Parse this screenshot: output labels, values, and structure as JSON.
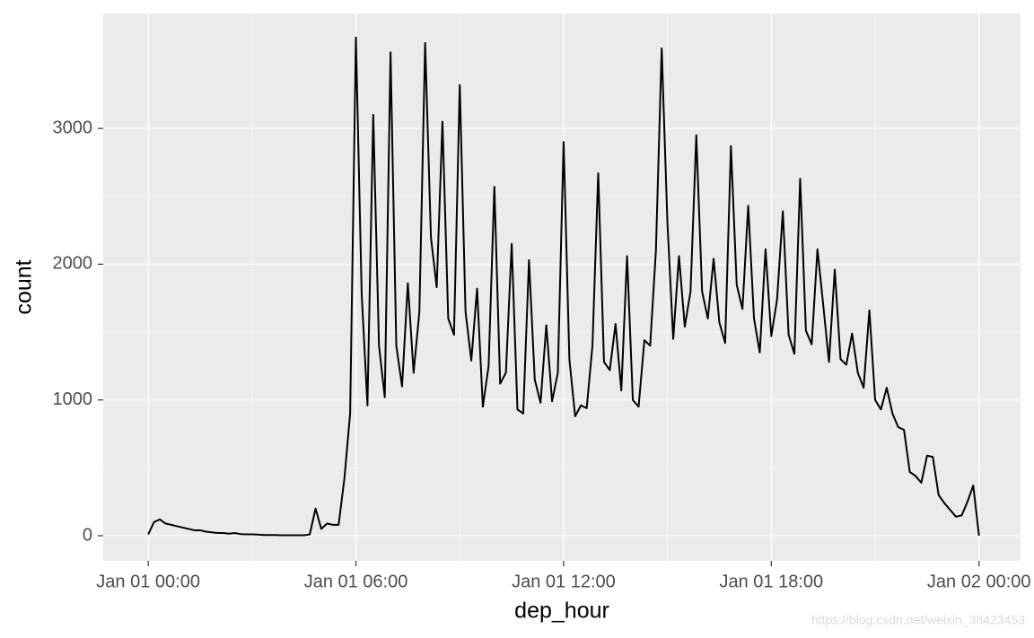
{
  "chart_data": {
    "type": "line",
    "x_label": "dep_hour",
    "y_label": "count",
    "watermark": "https://blog.csdn.net/weixin_38423453",
    "color": "#000000",
    "grid": true,
    "xlim": [
      "12-31T22:42",
      "01-02T01:12"
    ],
    "xticks": [
      {
        "value": "01-01T00:00",
        "label": "Jan 01 00:00"
      },
      {
        "value": "01-01T06:00",
        "label": "Jan 01 06:00"
      },
      {
        "value": "01-01T12:00",
        "label": "Jan 01 12:00"
      },
      {
        "value": "01-01T18:00",
        "label": "Jan 01 18:00"
      },
      {
        "value": "01-02T00:00",
        "label": "Jan 02 00:00"
      }
    ],
    "ylim": [
      -185,
      3847
    ],
    "yticks": [
      0,
      1000,
      2000,
      3000
    ],
    "x": [
      "01-01T00:00",
      "01-01T00:10",
      "01-01T00:20",
      "01-01T00:30",
      "01-01T00:40",
      "01-01T00:50",
      "01-01T01:00",
      "01-01T01:10",
      "01-01T01:20",
      "01-01T01:30",
      "01-01T01:40",
      "01-01T01:50",
      "01-01T02:00",
      "01-01T02:10",
      "01-01T02:20",
      "01-01T02:30",
      "01-01T02:40",
      "01-01T02:50",
      "01-01T03:00",
      "01-01T03:10",
      "01-01T03:20",
      "01-01T03:30",
      "01-01T03:40",
      "01-01T03:50",
      "01-01T04:00",
      "01-01T04:10",
      "01-01T04:20",
      "01-01T04:30",
      "01-01T04:40",
      "01-01T04:50",
      "01-01T05:00",
      "01-01T05:10",
      "01-01T05:20",
      "01-01T05:30",
      "01-01T05:40",
      "01-01T05:50",
      "01-01T06:00",
      "01-01T06:10",
      "01-01T06:20",
      "01-01T06:30",
      "01-01T06:40",
      "01-01T06:50",
      "01-01T07:00",
      "01-01T07:10",
      "01-01T07:20",
      "01-01T07:30",
      "01-01T07:40",
      "01-01T07:50",
      "01-01T08:00",
      "01-01T08:10",
      "01-01T08:20",
      "01-01T08:30",
      "01-01T08:40",
      "01-01T08:50",
      "01-01T09:00",
      "01-01T09:10",
      "01-01T09:20",
      "01-01T09:30",
      "01-01T09:40",
      "01-01T09:50",
      "01-01T10:00",
      "01-01T10:10",
      "01-01T10:20",
      "01-01T10:30",
      "01-01T10:40",
      "01-01T10:50",
      "01-01T11:00",
      "01-01T11:10",
      "01-01T11:20",
      "01-01T11:30",
      "01-01T11:40",
      "01-01T11:50",
      "01-01T12:00",
      "01-01T12:10",
      "01-01T12:20",
      "01-01T12:30",
      "01-01T12:40",
      "01-01T12:50",
      "01-01T13:00",
      "01-01T13:10",
      "01-01T13:20",
      "01-01T13:30",
      "01-01T13:40",
      "01-01T13:50",
      "01-01T14:00",
      "01-01T14:10",
      "01-01T14:20",
      "01-01T14:30",
      "01-01T14:40",
      "01-01T14:50",
      "01-01T15:00",
      "01-01T15:10",
      "01-01T15:20",
      "01-01T15:30",
      "01-01T15:40",
      "01-01T15:50",
      "01-01T16:00",
      "01-01T16:10",
      "01-01T16:20",
      "01-01T16:30",
      "01-01T16:40",
      "01-01T16:50",
      "01-01T17:00",
      "01-01T17:10",
      "01-01T17:20",
      "01-01T17:30",
      "01-01T17:40",
      "01-01T17:50",
      "01-01T18:00",
      "01-01T18:10",
      "01-01T18:20",
      "01-01T18:30",
      "01-01T18:40",
      "01-01T18:50",
      "01-01T19:00",
      "01-01T19:10",
      "01-01T19:20",
      "01-01T19:30",
      "01-01T19:40",
      "01-01T19:50",
      "01-01T20:00",
      "01-01T20:10",
      "01-01T20:20",
      "01-01T20:30",
      "01-01T20:40",
      "01-01T20:50",
      "01-01T21:00",
      "01-01T21:10",
      "01-01T21:20",
      "01-01T21:30",
      "01-01T21:40",
      "01-01T21:50",
      "01-01T22:00",
      "01-01T22:10",
      "01-01T22:20",
      "01-01T22:30",
      "01-01T22:40",
      "01-01T22:50",
      "01-01T23:00",
      "01-01T23:10",
      "01-01T23:20",
      "01-01T23:30",
      "01-01T23:40",
      "01-01T23:50",
      "01-02T00:00"
    ],
    "values": [
      10,
      100,
      120,
      90,
      80,
      70,
      60,
      50,
      40,
      40,
      30,
      25,
      20,
      20,
      15,
      20,
      12,
      10,
      10,
      8,
      5,
      5,
      5,
      3,
      3,
      3,
      3,
      3,
      10,
      200,
      50,
      90,
      80,
      80,
      420,
      900,
      3670,
      1780,
      960,
      3100,
      1400,
      1020,
      3560,
      1400,
      1100,
      1860,
      1200,
      1650,
      3630,
      2200,
      1830,
      3050,
      1600,
      1480,
      3320,
      1650,
      1290,
      1820,
      950,
      1250,
      2570,
      1120,
      1200,
      2150,
      930,
      900,
      2030,
      1150,
      980,
      1550,
      990,
      1200,
      2900,
      1300,
      880,
      960,
      940,
      1400,
      2670,
      1280,
      1220,
      1560,
      1070,
      2060,
      1000,
      950,
      1440,
      1400,
      2100,
      3590,
      2300,
      1450,
      2060,
      1540,
      1800,
      2950,
      1800,
      1600,
      2040,
      1570,
      1420,
      2870,
      1850,
      1670,
      2430,
      1600,
      1350,
      2110,
      1470,
      1740,
      2390,
      1480,
      1340,
      2630,
      1510,
      1410,
      2110,
      1700,
      1280,
      1960,
      1300,
      1260,
      1490,
      1200,
      1090,
      1660,
      1000,
      930,
      1090,
      900,
      800,
      780,
      470,
      440,
      390,
      590,
      580,
      300,
      240,
      190,
      140,
      150,
      250,
      370,
      0
    ]
  }
}
